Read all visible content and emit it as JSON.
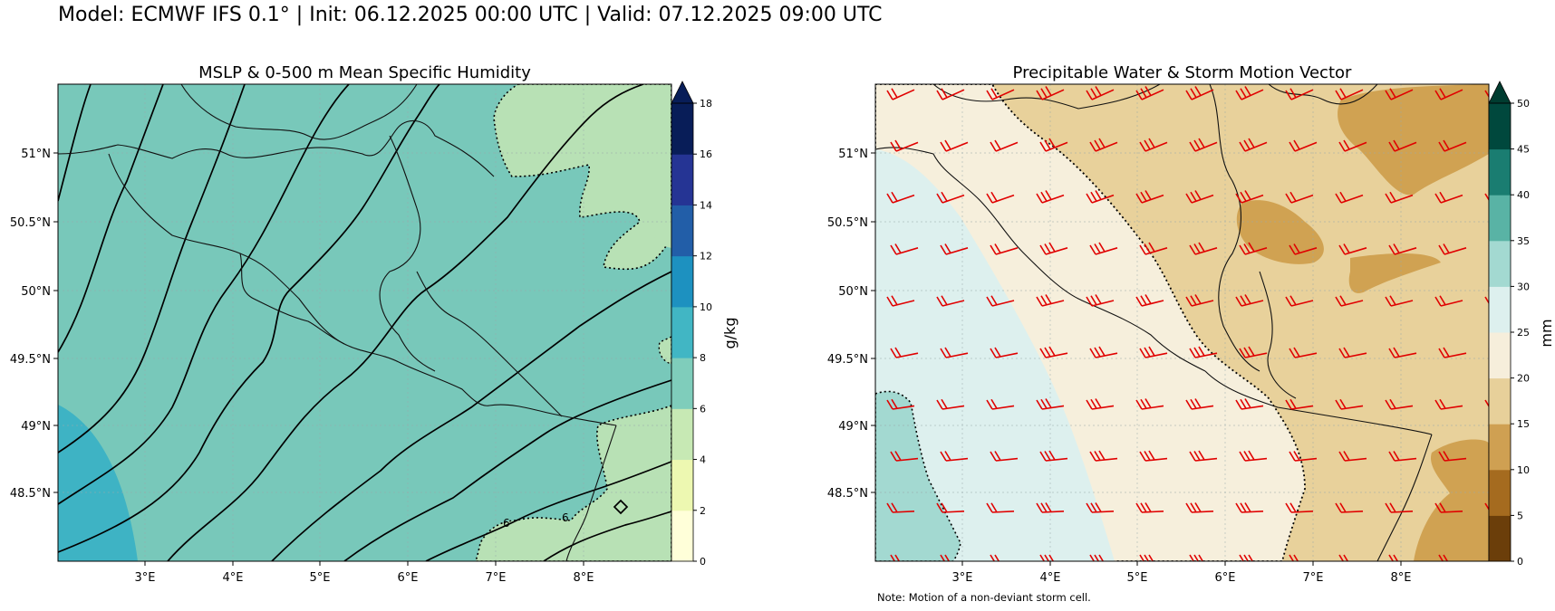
{
  "header": {
    "suptitle": "Model: ECMWF IFS 0.1° | Init: 06.12.2025 00:00 UTC | Valid: 07.12.2025 09:00 UTC"
  },
  "panels": [
    {
      "title": "MSLP & 0-500 m Mean Specific Humidity",
      "x_tick_labels": [
        "3°E",
        "4°E",
        "5°E",
        "6°E",
        "7°E",
        "8°E"
      ],
      "y_tick_labels": [
        "51°N",
        "50.5°N",
        "50°N",
        "49.5°N",
        "49°N",
        "48.5°N"
      ],
      "contour_labels": [
        "6",
        "6"
      ],
      "colorbar": {
        "label": "g/kg",
        "ticks": [
          "0",
          "2",
          "4",
          "6",
          "8",
          "10",
          "12",
          "14",
          "16",
          "18"
        ],
        "colors": [
          "#ffffd9",
          "#edf8b1",
          "#c7e9b4",
          "#7fcdbb",
          "#41b6c4",
          "#1d91c0",
          "#225ea8",
          "#253494",
          "#081d58"
        ],
        "extend_color": "#081d58"
      }
    },
    {
      "title": "Precipitable Water & Storm Motion Vector",
      "x_tick_labels": [
        "3°E",
        "4°E",
        "5°E",
        "6°E",
        "7°E",
        "8°E"
      ],
      "y_tick_labels": [
        "51°N",
        "50.5°N",
        "50°N",
        "49.5°N",
        "49°N",
        "48.5°N"
      ],
      "colorbar": {
        "label": "mm",
        "ticks": [
          "0",
          "5",
          "10",
          "15",
          "20",
          "25",
          "30",
          "35",
          "40",
          "45",
          "50"
        ],
        "colors": [
          "#6b3e0a",
          "#a56b1f",
          "#cfa052",
          "#e7d09a",
          "#f6eedb",
          "#ddf0ee",
          "#a3d9d1",
          "#59b3a5",
          "#1a7d71",
          "#00483d"
        ],
        "extend_color": "#003c30"
      }
    }
  ],
  "note": "Note: Motion of a non-deviant storm cell."
}
